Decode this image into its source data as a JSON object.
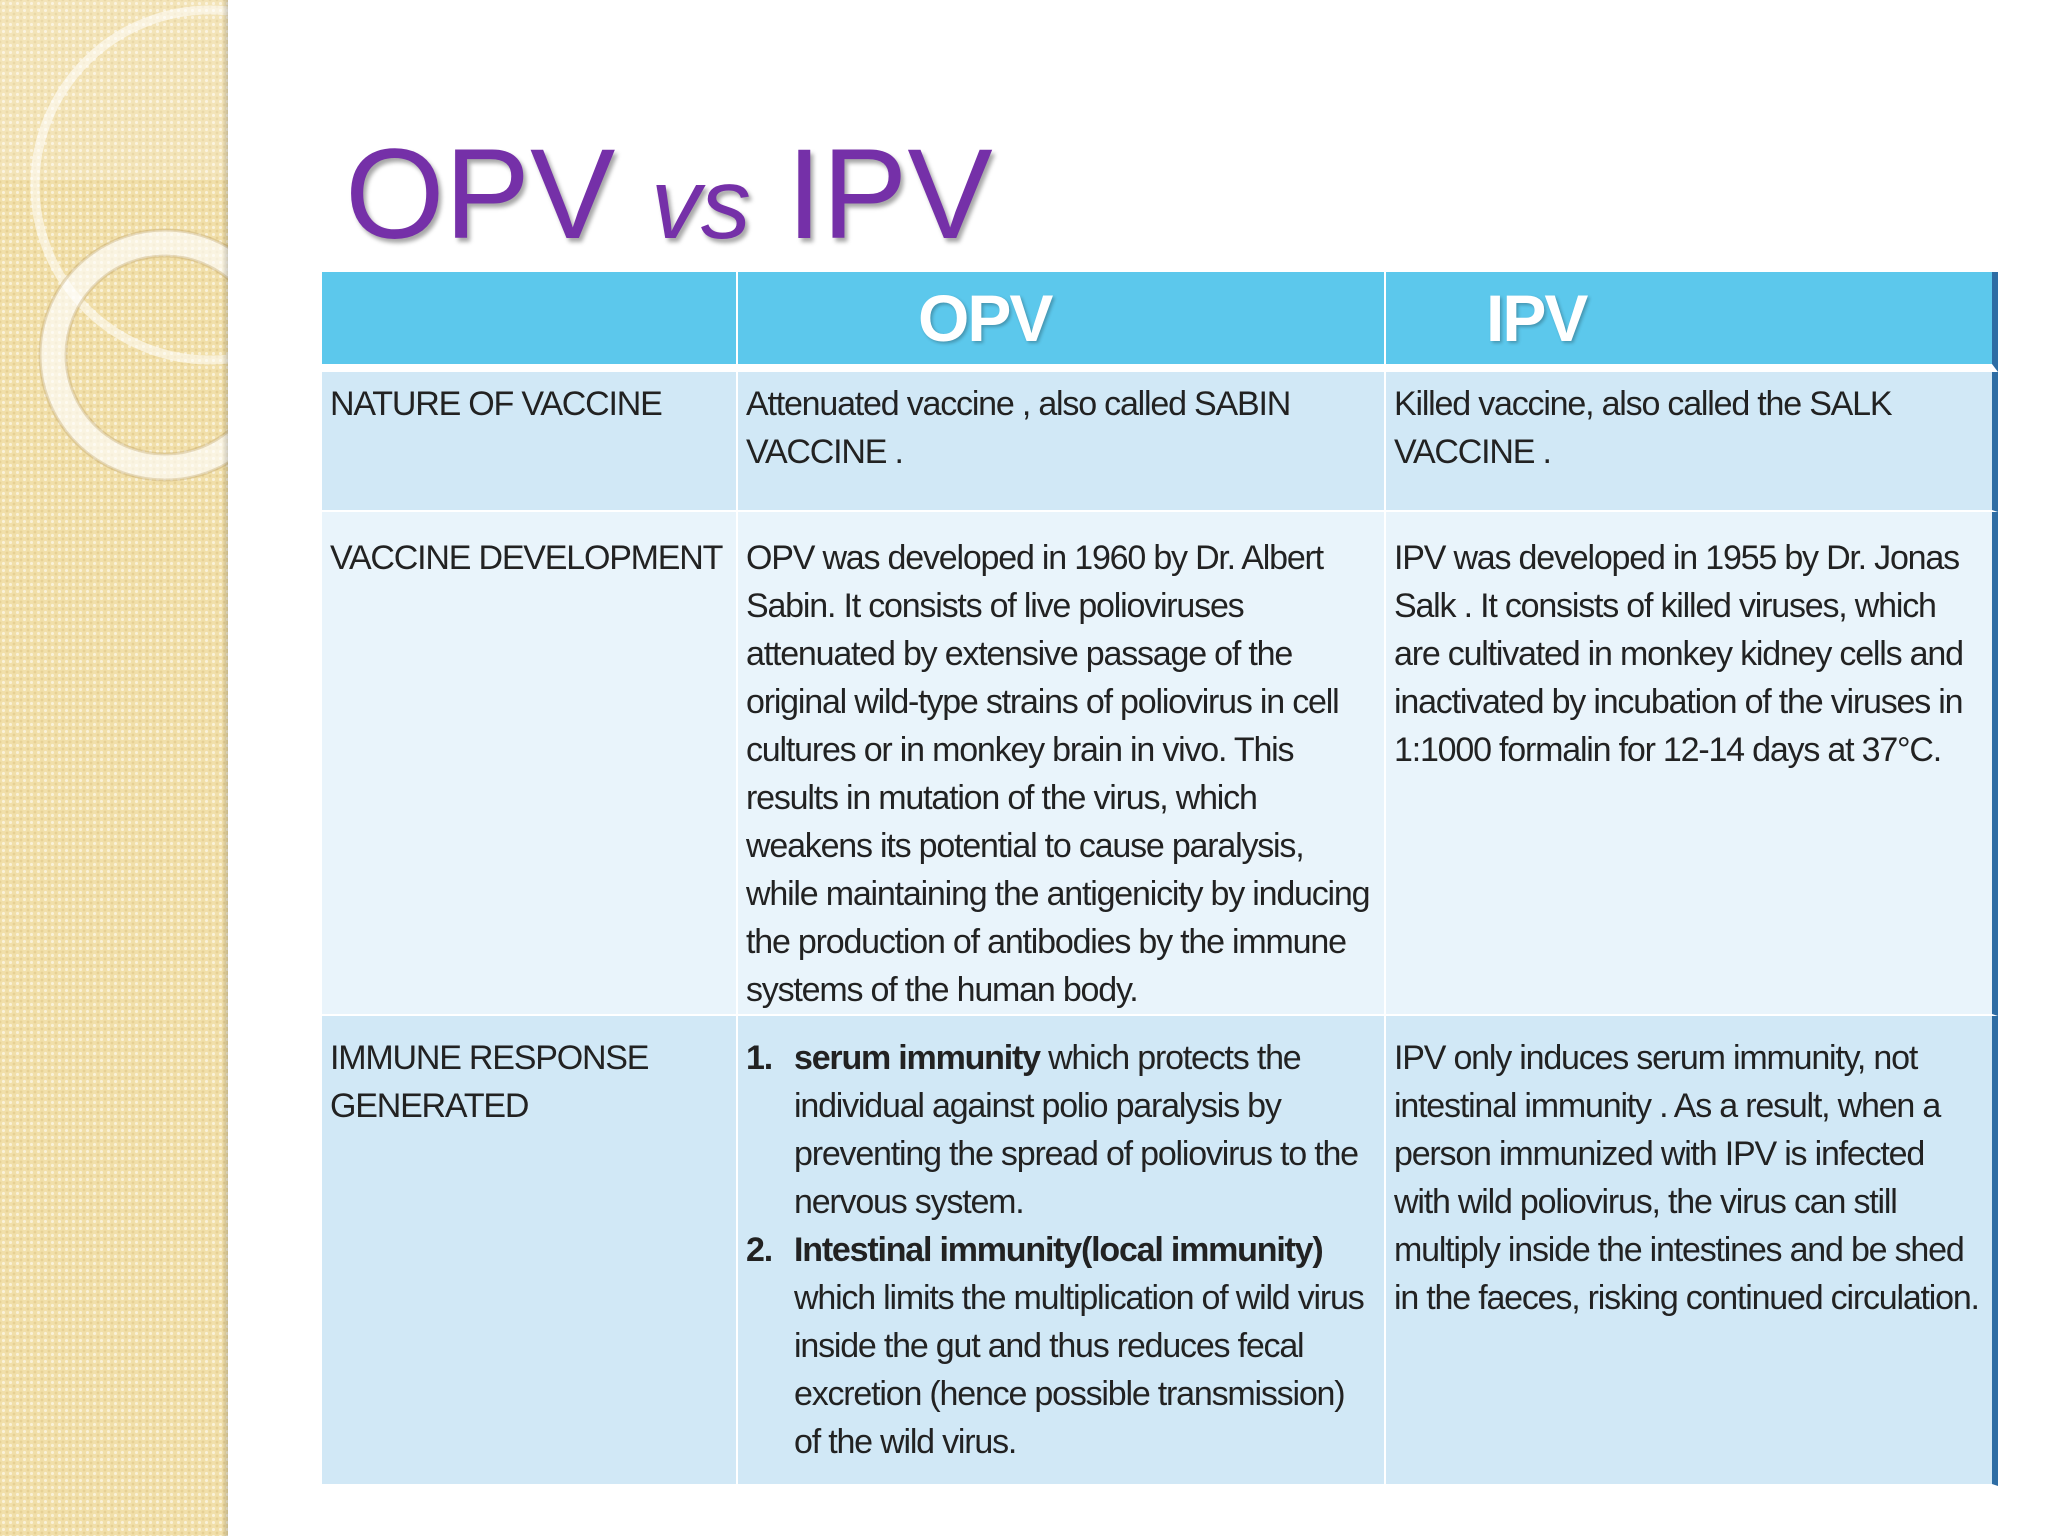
{
  "slide": {
    "title_a": "OPV",
    "title_vs": "vs",
    "title_b": "IPV"
  },
  "colors": {
    "title": "#7530a8",
    "header_bg": "#5cc8ec",
    "row_dark": "#d1e8f6",
    "row_light": "#e9f4fb",
    "side_strip": "#f1dfa9",
    "right_border": "#2e6da4"
  },
  "table": {
    "headers": [
      "",
      "OPV",
      "IPV"
    ],
    "rows": {
      "nature": {
        "label": "NATURE OF VACCINE",
        "opv": "Attenuated vaccine , also called SABIN VACCINE .",
        "ipv": "Killed vaccine, also called the SALK VACCINE ."
      },
      "development": {
        "label": "VACCINE DEVELOPMENT",
        "opv": "OPV was developed in 1960 by Dr. Albert Sabin. It consists of live polioviruses attenuated by extensive passage of the original wild-type strains of poliovirus in cell cultures or in monkey brain in vivo. This results in mutation of the virus, which weakens its potential to cause paralysis, while maintaining the antigenicity by inducing the production of antibodies by the immune systems of the human body.",
        "ipv": "IPV was developed in 1955 by Dr. Jonas Salk . It consists of killed viruses, which are cultivated in monkey kidney cells and inactivated by incubation of the viruses in 1:1000 formalin for 12-14 days at 37°C."
      },
      "immune": {
        "label": "IMMUNE RESPONSE GENERATED",
        "opv_items": [
          {
            "num": "1.",
            "bold": "serum immunity",
            "text": " which protects the individual against polio paralysis by preventing the spread of poliovirus to the nervous system."
          },
          {
            "num": "2.",
            "bold": "Intestinal immunity(local immunity)",
            "text": " which limits the multiplication of wild virus inside the gut and thus reduces fecal excretion (hence possible transmission) of the wild virus."
          }
        ],
        "ipv": "IPV only induces serum immunity, not intestinal immunity . As a result, when a person immunized with IPV is infected with wild poliovirus, the virus can still multiply inside the intestines and be shed in the faeces, risking continued circulation."
      }
    }
  }
}
